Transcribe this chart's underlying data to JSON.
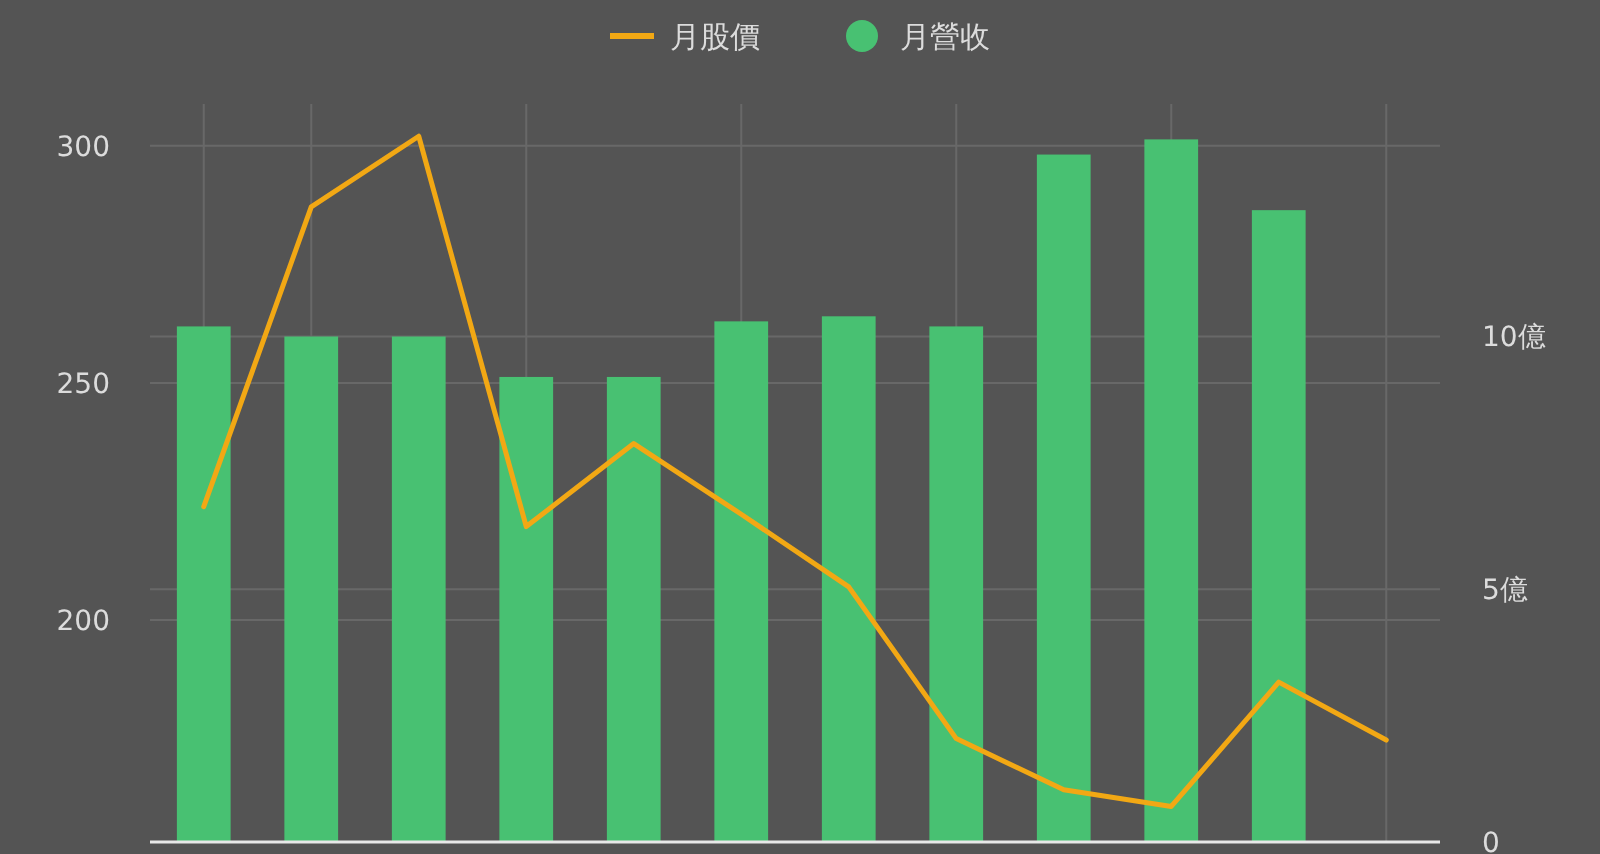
{
  "chart_data": {
    "type": "bar",
    "categories": [
      null,
      null,
      null,
      null,
      null,
      null,
      null,
      null,
      null,
      null,
      null,
      null
    ],
    "series": [
      {
        "name": "月股價",
        "type": "line",
        "color": "#f2a814",
        "values": [
          223.9,
          287.1,
          302.0,
          219.7,
          237.2,
          222.3,
          207.0,
          175.0,
          164.2,
          160.7,
          186.9,
          174.7
        ]
      },
      {
        "name": "月營收",
        "axis": "y2",
        "color": "#48c172",
        "values": [
          10.2,
          10.0,
          10.0,
          9.2,
          9.2,
          10.3,
          10.4,
          10.2,
          13.6,
          13.9,
          12.5,
          null
        ]
      }
    ],
    "ylim": [
      153.2,
      308.8
    ],
    "yticks": [
      200,
      250,
      300
    ],
    "y2lim": [
      0,
      14.6
    ],
    "y2ticks": [
      0,
      {
        "value": 5,
        "label": "5億"
      },
      {
        "value": 10,
        "label": "10億"
      }
    ],
    "grid": true,
    "legend": "top"
  }
}
